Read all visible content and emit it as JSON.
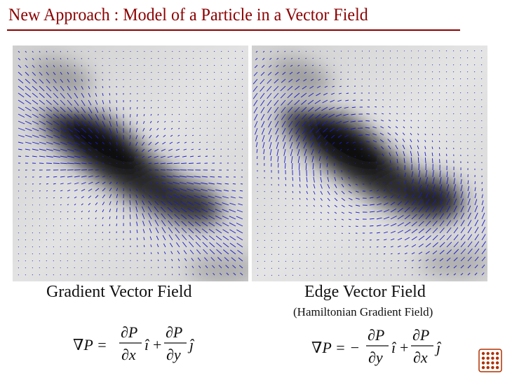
{
  "slide": {
    "title": "New Approach : Model of a Particle in a Vector Field"
  },
  "left_panel": {
    "caption": "Gradient Vector Field"
  },
  "right_panel": {
    "caption": "Edge Vector Field",
    "subcaption": "(Hamiltonian Gradient Field)"
  },
  "formulas": {
    "gradient": {
      "lhs": "∇P =",
      "num1": "∂P",
      "den1": "∂x",
      "unit1": "î",
      "plus": "+",
      "num2": "∂P",
      "den2": "∂y",
      "unit2": "ĵ"
    },
    "edge": {
      "lhs": "∇P = −",
      "num1": "∂P",
      "den1": "∂y",
      "unit1": "î",
      "plus": "+",
      "num2": "∂P",
      "den2": "∂x",
      "unit2": "ĵ"
    }
  },
  "colors": {
    "title": "#8b0000",
    "vectors": "#1a1acc",
    "logo": "#b03000"
  },
  "icons": {
    "logo": "dotted-grid-logo-icon"
  }
}
